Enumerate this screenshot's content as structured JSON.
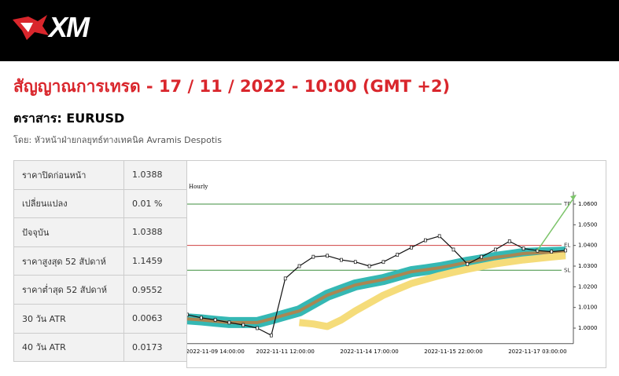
{
  "header": {
    "logo": "XM"
  },
  "title": "สัญญาณการเทรด - 17 / 11 / 2022 - 10:00 (GMT +2)",
  "instrument": "ตราสาร: EURUSD",
  "author": "โดย: หัวหน้าฝ่ายกลยุทธ์ทางเทคนิค Avramis Despotis",
  "table": {
    "rows": [
      [
        "ราคาปิดก่อนหน้า",
        "1.0388"
      ],
      [
        "เปลี่ยนแปลง",
        "0.01 %"
      ],
      [
        "ปัจจุบัน",
        "1.0388"
      ],
      [
        "ราคาสูงสุด 52 สัปดาห์",
        "1.1459"
      ],
      [
        "ราคาต่ำสุด 52 สัปดาห์",
        "0.9552"
      ],
      [
        "30 วัน ATR",
        "0.0063"
      ],
      [
        "40 วัน ATR",
        "0.0173"
      ]
    ]
  },
  "chart_data": {
    "type": "line",
    "title": "Hourly",
    "categories": [
      null,
      null,
      "2022-11-09 14:00:00",
      null,
      null,
      null,
      null,
      "2022-11-11 12:00:00",
      null,
      null,
      null,
      null,
      null,
      "2022-11-14 17:00:00",
      null,
      null,
      null,
      null,
      null,
      "2022-11-15 22:00:00",
      null,
      null,
      null,
      null,
      null,
      "2022-11-17 03:00:00",
      null,
      null
    ],
    "series": [
      {
        "color": "#35b8b4",
        "values": [
          1.0045,
          1.004,
          1.0033,
          1.0027,
          1.0027,
          1.0027,
          1.0045,
          1.0064,
          1.0083,
          1.0121,
          1.0159,
          1.0184,
          1.0209,
          1.0222,
          1.0235,
          1.0254,
          1.0273,
          1.0282,
          1.0292,
          1.0305,
          1.0319,
          1.033,
          1.0342,
          1.0351,
          1.0361,
          1.0364,
          1.0366,
          1.0368
        ]
      },
      {
        "color": "#f5dc7a",
        "values": [
          null,
          null,
          null,
          null,
          null,
          null,
          null,
          null,
          1.0027,
          1.002,
          1.0008,
          1.004,
          1.0083,
          1.0121,
          1.0159,
          1.0188,
          1.0216,
          1.0235,
          1.0254,
          1.027,
          1.0285,
          1.0298,
          1.0311,
          1.0321,
          1.033,
          1.0337,
          1.0344,
          1.035
        ]
      },
      {
        "color": "#111111",
        "values": [
          1.0065,
          1.005,
          1.004,
          1.0027,
          1.0015,
          1.0,
          0.9965,
          1.024,
          1.03,
          1.0345,
          1.035,
          1.033,
          1.032,
          1.03,
          1.032,
          1.0355,
          1.039,
          1.0425,
          1.0445,
          1.038,
          1.031,
          1.0345,
          1.038,
          1.042,
          1.0385,
          1.0375,
          1.037,
          1.0376
        ]
      }
    ],
    "levels": [
      {
        "label": "TP",
        "value": 1.06,
        "color": "#3c8f3c"
      },
      {
        "label": "EL",
        "value": 1.04,
        "color": "#d04040"
      },
      {
        "label": "SL",
        "value": 1.028,
        "color": "#3c8f3c"
      }
    ],
    "ylim": [
      0.994,
      1.066
    ],
    "yticks": [
      {
        "value": 1.0,
        "label": "1.0000"
      },
      {
        "value": 1.01,
        "label": "1.0100"
      },
      {
        "value": 1.02,
        "label": "1.0200"
      },
      1.03,
      {
        "value": 1.03,
        "label": "1.0300"
      },
      {
        "value": 1.04,
        "label": "1.0400"
      },
      {
        "value": 1.05,
        "label": "1.0500"
      },
      {
        "value": 1.06,
        "label": "1.0600"
      }
    ]
  }
}
